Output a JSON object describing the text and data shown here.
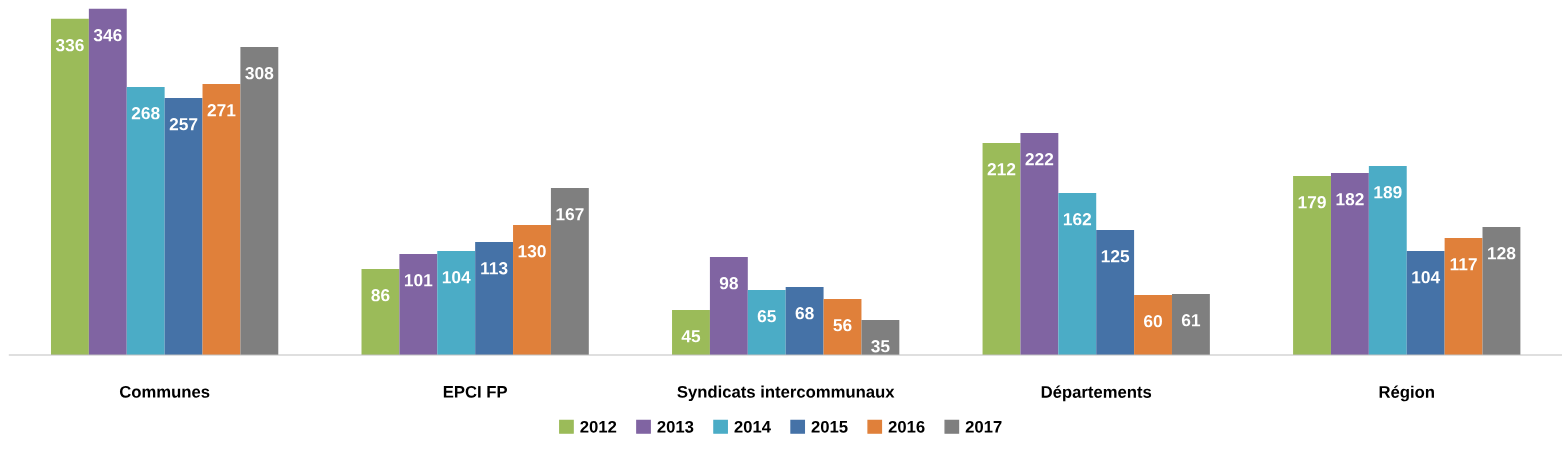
{
  "chart_data": {
    "type": "bar",
    "categories": [
      "Communes",
      "EPCI FP",
      "Syndicats intercommunaux",
      "Départements",
      "Région"
    ],
    "series": [
      {
        "name": "2012",
        "color": "#9bbb59",
        "values": [
          336,
          86,
          45,
          212,
          179
        ]
      },
      {
        "name": "2013",
        "color": "#8064a2",
        "values": [
          346,
          101,
          98,
          222,
          182
        ]
      },
      {
        "name": "2014",
        "color": "#4bacc6",
        "values": [
          268,
          104,
          65,
          162,
          189
        ]
      },
      {
        "name": "2015",
        "color": "#4572a7",
        "values": [
          257,
          113,
          68,
          125,
          104
        ]
      },
      {
        "name": "2016",
        "color": "#e0803a",
        "values": [
          271,
          130,
          56,
          60,
          117
        ]
      },
      {
        "name": "2017",
        "color": "#7f7f7f",
        "values": [
          308,
          167,
          35,
          61,
          128
        ]
      }
    ],
    "data_labels": true,
    "legend": "bottom",
    "grid": false
  }
}
